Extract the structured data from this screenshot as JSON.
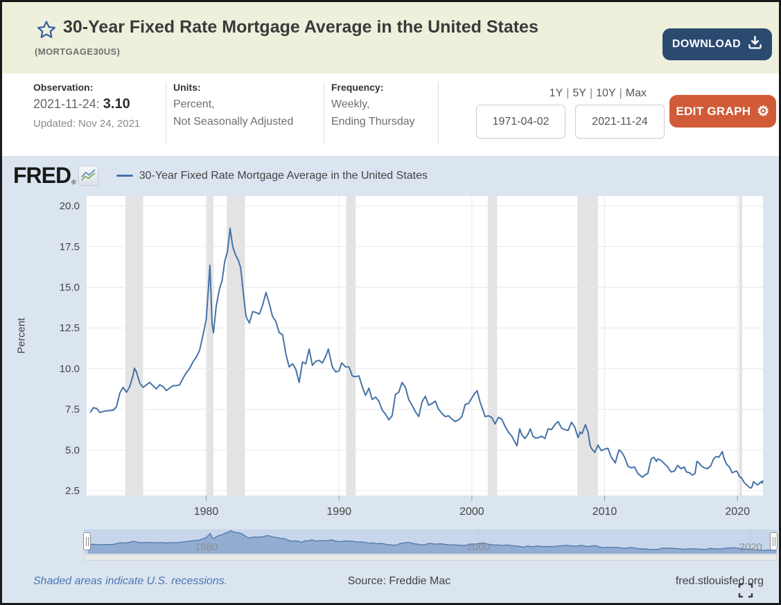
{
  "header": {
    "title": "30-Year Fixed Rate Mortgage Average in the United States",
    "series_id": "(MORTGAGE30US)",
    "download_label": "DOWNLOAD"
  },
  "info": {
    "observation": {
      "label": "Observation:",
      "date": "2021-11-24:",
      "value": "3.10",
      "updated": "Updated: Nov 24, 2021"
    },
    "units": {
      "label": "Units:",
      "line1": "Percent,",
      "line2": "Not Seasonally Adjusted"
    },
    "frequency": {
      "label": "Frequency:",
      "line1": "Weekly,",
      "line2": "Ending Thursday"
    }
  },
  "controls": {
    "presets": [
      {
        "label": "1Y"
      },
      {
        "label": "5Y"
      },
      {
        "label": "10Y"
      },
      {
        "label": "Max"
      }
    ],
    "preset_separator": "|",
    "date_start": "1971-04-02",
    "date_end": "2021-11-24",
    "edit_graph_label": "EDIT GRAPH",
    "gear_glyph": "⚙"
  },
  "legend": {
    "brand": "FRED",
    "registered": "®",
    "series_label": "30-Year Fixed Rate Mortgage Average in the United States"
  },
  "footer": {
    "recession_note": "Shaded areas indicate U.S. recessions.",
    "source": "Source: Freddie Mac",
    "site": "fred.stlouisfed.org"
  },
  "chart_data": {
    "type": "line",
    "title": "30-Year Fixed Rate Mortgage Average in the United States",
    "ylabel": "Percent",
    "x_domain": [
      1971.0,
      2021.92
    ],
    "y_domain": [
      2.2,
      20.6
    ],
    "y_ticks": [
      2.5,
      5.0,
      7.5,
      10.0,
      12.5,
      15.0,
      17.5,
      20.0
    ],
    "x_ticks": [
      1980,
      1990,
      2000,
      2010,
      2020
    ],
    "line_color": "#4572a7",
    "grid_color": "#e8e8e8",
    "recession_color": "#e3e3e3",
    "tick_color": "#999999",
    "label_color": "#444444",
    "recessions": [
      [
        1973.92,
        1975.25
      ],
      [
        1980.05,
        1980.55
      ],
      [
        1981.55,
        1982.92
      ],
      [
        1990.55,
        1991.25
      ],
      [
        2001.2,
        2001.9
      ],
      [
        2007.95,
        2009.5
      ],
      [
        2020.12,
        2020.35
      ]
    ],
    "series": [
      [
        1971.3,
        7.33
      ],
      [
        1971.5,
        7.6
      ],
      [
        1971.75,
        7.55
      ],
      [
        1972.0,
        7.3
      ],
      [
        1972.25,
        7.37
      ],
      [
        1972.5,
        7.4
      ],
      [
        1972.75,
        7.42
      ],
      [
        1973.0,
        7.44
      ],
      [
        1973.25,
        7.65
      ],
      [
        1973.5,
        8.5
      ],
      [
        1973.75,
        8.85
      ],
      [
        1974.0,
        8.54
      ],
      [
        1974.25,
        8.9
      ],
      [
        1974.5,
        9.6
      ],
      [
        1974.6,
        10.03
      ],
      [
        1974.75,
        9.8
      ],
      [
        1975.0,
        9.1
      ],
      [
        1975.25,
        8.85
      ],
      [
        1975.5,
        9.0
      ],
      [
        1975.75,
        9.15
      ],
      [
        1976.0,
        8.95
      ],
      [
        1976.25,
        8.75
      ],
      [
        1976.5,
        9.0
      ],
      [
        1976.75,
        8.9
      ],
      [
        1977.0,
        8.65
      ],
      [
        1977.25,
        8.8
      ],
      [
        1977.5,
        8.95
      ],
      [
        1977.75,
        8.95
      ],
      [
        1978.0,
        9.0
      ],
      [
        1978.25,
        9.4
      ],
      [
        1978.5,
        9.75
      ],
      [
        1978.75,
        10.0
      ],
      [
        1979.0,
        10.4
      ],
      [
        1979.25,
        10.7
      ],
      [
        1979.5,
        11.1
      ],
      [
        1979.75,
        12.0
      ],
      [
        1980.0,
        13.0
      ],
      [
        1980.2,
        15.3
      ],
      [
        1980.28,
        16.35
      ],
      [
        1980.45,
        12.7
      ],
      [
        1980.55,
        12.2
      ],
      [
        1980.75,
        13.8
      ],
      [
        1981.0,
        14.9
      ],
      [
        1981.2,
        15.4
      ],
      [
        1981.4,
        16.6
      ],
      [
        1981.6,
        17.2
      ],
      [
        1981.75,
        18.2
      ],
      [
        1981.8,
        18.63
      ],
      [
        1982.0,
        17.5
      ],
      [
        1982.2,
        17.0
      ],
      [
        1982.4,
        16.7
      ],
      [
        1982.6,
        16.2
      ],
      [
        1982.8,
        14.6
      ],
      [
        1983.0,
        13.2
      ],
      [
        1983.25,
        12.8
      ],
      [
        1983.5,
        13.5
      ],
      [
        1983.75,
        13.45
      ],
      [
        1984.0,
        13.35
      ],
      [
        1984.25,
        13.9
      ],
      [
        1984.5,
        14.68
      ],
      [
        1984.75,
        14.0
      ],
      [
        1985.0,
        13.2
      ],
      [
        1985.25,
        12.9
      ],
      [
        1985.5,
        12.2
      ],
      [
        1985.75,
        12.1
      ],
      [
        1986.0,
        10.9
      ],
      [
        1986.25,
        10.1
      ],
      [
        1986.5,
        10.3
      ],
      [
        1986.75,
        9.95
      ],
      [
        1987.0,
        9.15
      ],
      [
        1987.25,
        10.4
      ],
      [
        1987.5,
        10.3
      ],
      [
        1987.75,
        11.2
      ],
      [
        1988.0,
        10.2
      ],
      [
        1988.25,
        10.45
      ],
      [
        1988.5,
        10.5
      ],
      [
        1988.75,
        10.35
      ],
      [
        1989.0,
        10.75
      ],
      [
        1989.2,
        11.2
      ],
      [
        1989.5,
        10.1
      ],
      [
        1989.75,
        9.8
      ],
      [
        1990.0,
        9.85
      ],
      [
        1990.2,
        10.35
      ],
      [
        1990.5,
        10.1
      ],
      [
        1990.75,
        10.1
      ],
      [
        1991.0,
        9.55
      ],
      [
        1991.25,
        9.5
      ],
      [
        1991.5,
        9.55
      ],
      [
        1991.75,
        8.9
      ],
      [
        1992.0,
        8.35
      ],
      [
        1992.25,
        8.8
      ],
      [
        1992.5,
        8.1
      ],
      [
        1992.75,
        8.25
      ],
      [
        1993.0,
        8.0
      ],
      [
        1993.25,
        7.45
      ],
      [
        1993.5,
        7.2
      ],
      [
        1993.75,
        6.85
      ],
      [
        1994.0,
        7.1
      ],
      [
        1994.25,
        8.4
      ],
      [
        1994.5,
        8.55
      ],
      [
        1994.75,
        9.15
      ],
      [
        1995.0,
        8.85
      ],
      [
        1995.25,
        8.1
      ],
      [
        1995.5,
        7.75
      ],
      [
        1995.75,
        7.35
      ],
      [
        1996.0,
        7.05
      ],
      [
        1996.25,
        7.95
      ],
      [
        1996.5,
        8.3
      ],
      [
        1996.75,
        7.75
      ],
      [
        1997.0,
        7.85
      ],
      [
        1997.25,
        8.0
      ],
      [
        1997.5,
        7.5
      ],
      [
        1997.75,
        7.25
      ],
      [
        1998.0,
        7.05
      ],
      [
        1998.25,
        7.1
      ],
      [
        1998.5,
        6.9
      ],
      [
        1998.75,
        6.75
      ],
      [
        1999.0,
        6.85
      ],
      [
        1999.25,
        7.05
      ],
      [
        1999.5,
        7.8
      ],
      [
        1999.75,
        7.85
      ],
      [
        2000.0,
        8.2
      ],
      [
        2000.25,
        8.5
      ],
      [
        2000.4,
        8.64
      ],
      [
        2000.6,
        8.0
      ],
      [
        2000.75,
        7.65
      ],
      [
        2001.0,
        7.05
      ],
      [
        2001.25,
        7.1
      ],
      [
        2001.5,
        7.0
      ],
      [
        2001.75,
        6.6
      ],
      [
        2002.0,
        7.0
      ],
      [
        2002.25,
        6.9
      ],
      [
        2002.5,
        6.45
      ],
      [
        2002.75,
        6.1
      ],
      [
        2003.0,
        5.85
      ],
      [
        2003.4,
        5.25
      ],
      [
        2003.6,
        6.3
      ],
      [
        2003.75,
        5.95
      ],
      [
        2004.0,
        5.7
      ],
      [
        2004.25,
        6.0
      ],
      [
        2004.4,
        6.3
      ],
      [
        2004.6,
        5.85
      ],
      [
        2004.75,
        5.75
      ],
      [
        2005.0,
        5.75
      ],
      [
        2005.25,
        5.85
      ],
      [
        2005.5,
        5.7
      ],
      [
        2005.75,
        6.3
      ],
      [
        2006.0,
        6.25
      ],
      [
        2006.25,
        6.55
      ],
      [
        2006.5,
        6.75
      ],
      [
        2006.75,
        6.35
      ],
      [
        2007.0,
        6.25
      ],
      [
        2007.25,
        6.2
      ],
      [
        2007.5,
        6.7
      ],
      [
        2007.75,
        6.4
      ],
      [
        2008.0,
        5.75
      ],
      [
        2008.15,
        6.1
      ],
      [
        2008.3,
        6.0
      ],
      [
        2008.55,
        6.55
      ],
      [
        2008.75,
        6.1
      ],
      [
        2008.9,
        5.3
      ],
      [
        2009.0,
        5.1
      ],
      [
        2009.25,
        4.85
      ],
      [
        2009.5,
        5.3
      ],
      [
        2009.75,
        4.95
      ],
      [
        2010.0,
        5.05
      ],
      [
        2010.25,
        5.1
      ],
      [
        2010.5,
        4.55
      ],
      [
        2010.8,
        4.2
      ],
      [
        2011.0,
        4.8
      ],
      [
        2011.1,
        5.0
      ],
      [
        2011.3,
        4.85
      ],
      [
        2011.5,
        4.55
      ],
      [
        2011.75,
        4.0
      ],
      [
        2012.0,
        3.9
      ],
      [
        2012.25,
        3.95
      ],
      [
        2012.5,
        3.55
      ],
      [
        2012.85,
        3.32
      ],
      [
        2013.0,
        3.45
      ],
      [
        2013.25,
        3.55
      ],
      [
        2013.5,
        4.45
      ],
      [
        2013.7,
        4.55
      ],
      [
        2013.9,
        4.3
      ],
      [
        2014.0,
        4.45
      ],
      [
        2014.25,
        4.35
      ],
      [
        2014.5,
        4.15
      ],
      [
        2014.75,
        3.95
      ],
      [
        2015.0,
        3.65
      ],
      [
        2015.25,
        3.7
      ],
      [
        2015.5,
        4.05
      ],
      [
        2015.75,
        3.85
      ],
      [
        2016.0,
        3.95
      ],
      [
        2016.15,
        3.65
      ],
      [
        2016.4,
        3.6
      ],
      [
        2016.6,
        3.45
      ],
      [
        2016.8,
        3.55
      ],
      [
        2016.95,
        4.3
      ],
      [
        2017.1,
        4.2
      ],
      [
        2017.3,
        4.0
      ],
      [
        2017.5,
        3.9
      ],
      [
        2017.75,
        3.85
      ],
      [
        2018.0,
        4.05
      ],
      [
        2018.2,
        4.45
      ],
      [
        2018.4,
        4.6
      ],
      [
        2018.6,
        4.55
      ],
      [
        2018.85,
        4.9
      ],
      [
        2019.0,
        4.45
      ],
      [
        2019.2,
        4.1
      ],
      [
        2019.4,
        3.95
      ],
      [
        2019.6,
        3.6
      ],
      [
        2019.75,
        3.65
      ],
      [
        2019.9,
        3.7
      ],
      [
        2020.0,
        3.65
      ],
      [
        2020.15,
        3.35
      ],
      [
        2020.3,
        3.3
      ],
      [
        2020.5,
        3.0
      ],
      [
        2020.7,
        2.85
      ],
      [
        2020.9,
        2.7
      ],
      [
        2021.0,
        2.65
      ],
      [
        2021.1,
        2.75
      ],
      [
        2021.2,
        3.05
      ],
      [
        2021.35,
        2.95
      ],
      [
        2021.5,
        2.85
      ],
      [
        2021.6,
        2.9
      ],
      [
        2021.7,
        3.0
      ],
      [
        2021.8,
        3.05
      ],
      [
        2021.85,
        2.95
      ],
      [
        2021.9,
        3.1
      ]
    ],
    "navigator": {
      "ticks": [
        1980,
        2000,
        2020
      ],
      "y_domain": [
        0,
        19.5
      ],
      "fill_color": "#8ca8ce",
      "line_color": "#537bad",
      "bg": "#c8d6ec",
      "tick_line_color": "#bcc9df",
      "label_color": "#909090"
    }
  }
}
